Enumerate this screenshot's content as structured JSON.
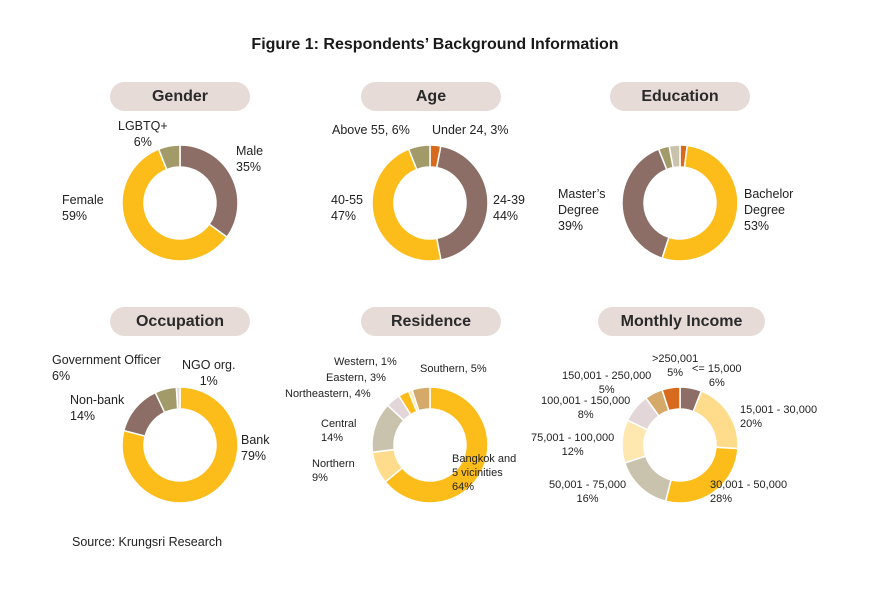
{
  "figure": {
    "title": "Figure 1: Respondents’ Background Information",
    "source": "Source: Krungsri Research"
  },
  "colors": {
    "gold": "#fcbd1b",
    "brown": "#8c6e66",
    "olive": "#a39a6a",
    "orange": "#d86a1e",
    "beige": "#c9c2ad",
    "light_yellow": "#ffdc8c",
    "pale_yellow": "#ffe8b0",
    "lavender": "#e2d6d8",
    "tan": "#d4a96a",
    "pill_bg": "#e7dbd8"
  },
  "chart_data": [
    {
      "type": "pie",
      "title": "Gender",
      "slices": [
        {
          "lines": [
            "Male",
            "35%"
          ],
          "value": 35,
          "color": "#8c6e66"
        },
        {
          "lines": [
            "Female",
            "59%"
          ],
          "value": 59,
          "color": "#fcbd1b"
        },
        {
          "lines": [
            "LGBTQ+",
            "6%"
          ],
          "value": 6,
          "color": "#a39a6a"
        }
      ]
    },
    {
      "type": "pie",
      "title": "Age",
      "slices": [
        {
          "lines": [
            "Under 24, 3%"
          ],
          "value": 3,
          "color": "#d86a1e"
        },
        {
          "lines": [
            "24-39",
            "44%"
          ],
          "value": 44,
          "color": "#8c6e66"
        },
        {
          "lines": [
            "40-55",
            "47%"
          ],
          "value": 47,
          "color": "#fcbd1b"
        },
        {
          "lines": [
            "Above 55, 6%"
          ],
          "value": 6,
          "color": "#a39a6a"
        }
      ]
    },
    {
      "type": "pie",
      "title": "Education",
      "slices": [
        {
          "lines": [
            ""
          ],
          "value": 2,
          "color": "#d86a1e"
        },
        {
          "lines": [
            "Bachelor",
            "Degree",
            "53%"
          ],
          "value": 53,
          "color": "#fcbd1b"
        },
        {
          "lines": [
            "Master’s",
            "Degree",
            "39%"
          ],
          "value": 39,
          "color": "#8c6e66"
        },
        {
          "lines": [
            ""
          ],
          "value": 3,
          "color": "#a39a6a"
        },
        {
          "lines": [
            ""
          ],
          "value": 3,
          "color": "#c9c2ad"
        }
      ]
    },
    {
      "type": "pie",
      "title": "Occupation",
      "slices": [
        {
          "lines": [
            "Bank",
            "79%"
          ],
          "value": 79,
          "color": "#fcbd1b"
        },
        {
          "lines": [
            "Non-bank",
            "14%"
          ],
          "value": 14,
          "color": "#8c6e66"
        },
        {
          "lines": [
            "Government Officer",
            "6%"
          ],
          "value": 6,
          "color": "#a39a6a"
        },
        {
          "lines": [
            "NGO org.",
            "1%"
          ],
          "value": 1,
          "color": "#e2d6d8"
        }
      ]
    },
    {
      "type": "pie",
      "title": "Residence",
      "slices": [
        {
          "lines": [
            "Bangkok and",
            "5 vicinities",
            "64%"
          ],
          "value": 64,
          "color": "#fcbd1b"
        },
        {
          "lines": [
            "Northern",
            "9%"
          ],
          "value": 9,
          "color": "#ffdc8c"
        },
        {
          "lines": [
            "Central",
            "14%"
          ],
          "value": 14,
          "color": "#c9c2ad"
        },
        {
          "lines": [
            "Northeastern, 4%"
          ],
          "value": 4,
          "color": "#e2d6d8"
        },
        {
          "lines": [
            "Eastern, 3%"
          ],
          "value": 3,
          "color": "#fcbd1b"
        },
        {
          "lines": [
            "Western, 1%"
          ],
          "value": 1,
          "color": "#ffe8b0"
        },
        {
          "lines": [
            "Southern, 5%"
          ],
          "value": 5,
          "color": "#d4a96a"
        }
      ]
    },
    {
      "type": "pie",
      "title": "Monthly Income",
      "slices": [
        {
          "lines": [
            "<= 15,000",
            "6%"
          ],
          "value": 6,
          "color": "#8c6e66"
        },
        {
          "lines": [
            "15,001 - 30,000",
            "20%"
          ],
          "value": 20,
          "color": "#ffdc8c"
        },
        {
          "lines": [
            "30,001 - 50,000",
            "28%"
          ],
          "value": 28,
          "color": "#fcbd1b"
        },
        {
          "lines": [
            "50,001 - 75,000",
            "16%"
          ],
          "value": 16,
          "color": "#c9c2ad"
        },
        {
          "lines": [
            "75,001 - 100,000",
            "12%"
          ],
          "value": 12,
          "color": "#ffe8b0"
        },
        {
          "lines": [
            "100,001 - 150,000",
            "8%"
          ],
          "value": 8,
          "color": "#e2d6d8"
        },
        {
          "lines": [
            "150,001 - 250,000",
            "5%"
          ],
          "value": 5,
          "color": "#d4a96a"
        },
        {
          "lines": [
            ">250,001",
            "5%"
          ],
          "value": 5,
          "color": "#d86a1e"
        }
      ]
    }
  ]
}
